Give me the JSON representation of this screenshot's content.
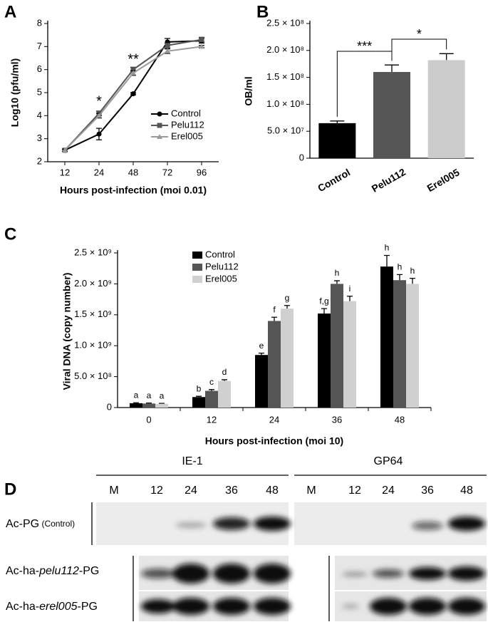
{
  "chart_data": [
    {
      "type": "line",
      "panel_label": "A",
      "x_label": "Hours post-infection (moi 0.01)",
      "y_label": "Log10 (pfu/ml)",
      "categories": [
        "12",
        "24",
        "48",
        "72",
        "96"
      ],
      "series": [
        {
          "name": "Control",
          "color": "#000000",
          "marker": "circle",
          "values": [
            2.5,
            3.2,
            4.95,
            7.2,
            7.25
          ],
          "errors": [
            0.05,
            0.25,
            0.05,
            0.15,
            0.1
          ]
        },
        {
          "name": "Pelu112",
          "color": "#555555",
          "marker": "square",
          "values": [
            2.5,
            4.1,
            6.0,
            7.05,
            7.3
          ],
          "errors": [
            0.05,
            0.1,
            0.1,
            0.1,
            0.1
          ]
        },
        {
          "name": "Erel005",
          "color": "#9a9a9a",
          "marker": "triangle",
          "values": [
            2.5,
            4.0,
            5.85,
            6.8,
            7.0
          ],
          "errors": [
            0.05,
            0.1,
            0.1,
            0.1,
            0.05
          ]
        }
      ],
      "annotations": [
        "*",
        "**"
      ],
      "ylim": [
        2,
        8
      ],
      "yticks": [
        2,
        3,
        4,
        5,
        6,
        7,
        8
      ]
    },
    {
      "type": "bar",
      "panel_label": "B",
      "y_label": "OB/ml",
      "categories": [
        "Control",
        "Pelu112",
        "Erel005"
      ],
      "values": [
        65000000,
        160000000,
        182000000
      ],
      "errors": [
        4000000,
        13000000,
        12000000
      ],
      "colors": [
        "#000000",
        "#555555",
        "#cccccc"
      ],
      "annotations": [
        "***",
        "*"
      ],
      "ylim": [
        0,
        250000000
      ],
      "yticks": [
        0,
        {
          "value": 50000000,
          "label": "5.0 × 10⁷"
        },
        {
          "value": 100000000,
          "label": "1.0 × 10⁸"
        },
        {
          "value": 150000000,
          "label": "1.5 × 10⁸"
        },
        {
          "value": 200000000,
          "label": "2.0 × 10⁸"
        },
        {
          "value": 250000000,
          "label": "2.5 × 10⁸"
        }
      ]
    },
    {
      "type": "grouped_bar",
      "panel_label": "C",
      "x_label": "Hours post-infection (moi 10)",
      "y_label": "Viral DNA (copy number)",
      "categories": [
        "0",
        "12",
        "24",
        "36",
        "48"
      ],
      "series": [
        {
          "name": "Control",
          "color": "#000000",
          "values": [
            70000000,
            170000000,
            850000000,
            1520000000,
            2280000000
          ],
          "errors": [
            8000000,
            12000000,
            30000000,
            80000000,
            180000000
          ],
          "letters": [
            "a",
            "b",
            "e",
            "f,g",
            "h"
          ]
        },
        {
          "name": "Pelu112",
          "color": "#555555",
          "values": [
            65000000,
            270000000,
            1400000000,
            2000000000,
            2060000000
          ],
          "errors": [
            8000000,
            20000000,
            60000000,
            50000000,
            90000000
          ],
          "letters": [
            "a",
            "c",
            "f",
            "h",
            "h"
          ]
        },
        {
          "name": "Erel005",
          "color": "#d0d0d0",
          "values": [
            60000000,
            430000000,
            1600000000,
            1720000000,
            2000000000
          ],
          "errors": [
            8000000,
            20000000,
            50000000,
            80000000,
            90000000
          ],
          "letters": [
            "a",
            "d",
            "g",
            "i",
            "h"
          ]
        }
      ],
      "ylim": [
        0,
        2500000000
      ],
      "yticks": [
        0,
        {
          "value": 500000000,
          "label": "5.0 × 10⁸"
        },
        {
          "value": 1000000000,
          "label": "1.0 × 10⁹"
        },
        {
          "value": 1500000000,
          "label": "1.5 × 10⁹"
        },
        {
          "value": 2000000000,
          "label": "2.0 × 10⁹"
        },
        {
          "value": 2500000000,
          "label": "2.5 × 10⁹"
        }
      ]
    }
  ],
  "blot": {
    "panel_label": "D",
    "groups": [
      {
        "name": "IE-1",
        "lanes": [
          "M",
          "12",
          "24",
          "36",
          "48"
        ]
      },
      {
        "name": "GP64",
        "lanes": [
          "M",
          "12",
          "24",
          "36",
          "48"
        ]
      }
    ],
    "rows": [
      [
        "Ac-PG",
        " (Control)"
      ],
      [
        "Ac-ha-",
        "pelu112",
        "-PG"
      ],
      [
        "Ac-ha-",
        "erel005",
        "-PG"
      ]
    ]
  }
}
